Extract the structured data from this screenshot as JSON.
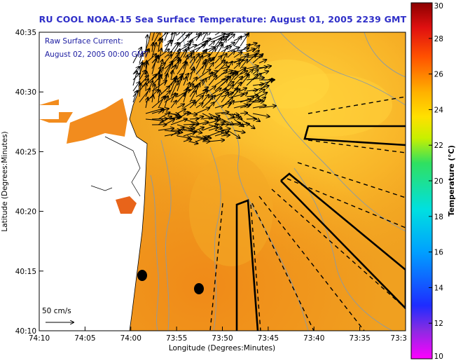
{
  "title": "RU COOL  NOAA-15  Sea Surface Temperature:  August 01, 2005 2239 GMT",
  "annotation": {
    "line1": "Raw Surface Current:",
    "line2": "August 02, 2005 00:00 GMT"
  },
  "scale_label": "50 cm/s",
  "axes": {
    "xlabel": "Longitude (Degrees:Minutes)",
    "ylabel": "Latitude (Degrees:Minutes)",
    "x_ticks": [
      "74:10",
      "74:05",
      "74:00",
      "73:55",
      "73:50",
      "73:45",
      "73:40",
      "73:35",
      "73:3"
    ],
    "y_ticks": [
      "40:35",
      "40:30",
      "40:25",
      "40:20",
      "40:15",
      "40:10"
    ]
  },
  "colorbar": {
    "label": "Temperature (°C)",
    "ticks": [
      "30",
      "28",
      "26",
      "24",
      "22",
      "20",
      "18",
      "16",
      "14",
      "12",
      "10"
    ],
    "min": 10,
    "max": 30
  },
  "colors": {
    "title": "#2f2fc8",
    "ocean": "#f0a020",
    "land": "#ffffff",
    "cloud": "#ffffff",
    "contour": "#8a9aa6",
    "vector": "#000000"
  }
}
